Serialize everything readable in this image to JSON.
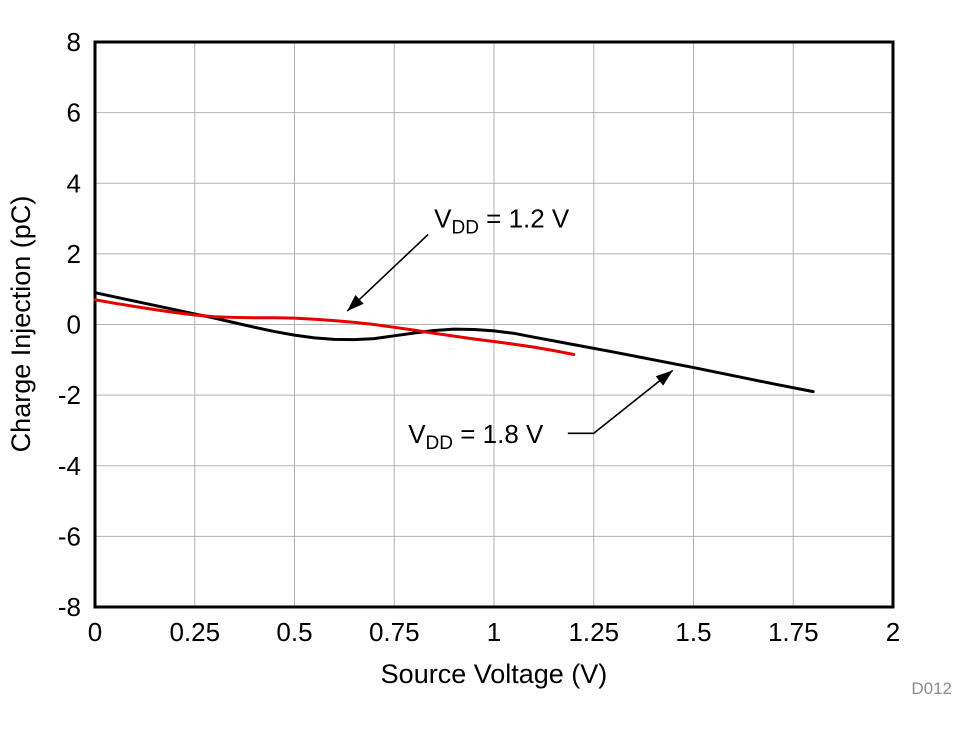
{
  "chart_data": {
    "type": "line",
    "title": "",
    "xlabel": "Source Voltage (V)",
    "ylabel": "Charge Injection (pC)",
    "figure_id": "D012",
    "xlim": [
      0,
      2
    ],
    "ylim": [
      -8,
      8
    ],
    "xticks": [
      0,
      0.25,
      0.5,
      0.75,
      1,
      1.25,
      1.5,
      1.75,
      2
    ],
    "xtick_labels": [
      "0",
      "0.25",
      "0.5",
      "0.75",
      "1",
      "1.25",
      "1.5",
      "1.75",
      "2"
    ],
    "yticks": [
      -8,
      -6,
      -4,
      -2,
      0,
      2,
      4,
      6,
      8
    ],
    "ytick_labels": [
      "-8",
      "-6",
      "-4",
      "-2",
      "0",
      "2",
      "4",
      "6",
      "8"
    ],
    "grid": true,
    "grid_color": "#b2b2b2",
    "axis_color": "#000000",
    "background": "#ffffff",
    "series": [
      {
        "name": "VDD = 1.8 V",
        "color": "#000000",
        "x": [
          0,
          0.05,
          0.1,
          0.15,
          0.2,
          0.25,
          0.3,
          0.35,
          0.4,
          0.45,
          0.5,
          0.55,
          0.6,
          0.65,
          0.7,
          0.75,
          0.8,
          0.85,
          0.9,
          0.95,
          1.0,
          1.05,
          1.1,
          1.2,
          1.3,
          1.4,
          1.5,
          1.6,
          1.7,
          1.8
        ],
        "y": [
          0.9,
          0.78,
          0.66,
          0.54,
          0.42,
          0.3,
          0.18,
          0.05,
          -0.08,
          -0.2,
          -0.3,
          -0.38,
          -0.42,
          -0.43,
          -0.4,
          -0.32,
          -0.24,
          -0.17,
          -0.13,
          -0.14,
          -0.18,
          -0.25,
          -0.36,
          -0.57,
          -0.78,
          -1.0,
          -1.22,
          -1.45,
          -1.68,
          -1.9
        ]
      },
      {
        "name": "VDD = 1.2 V",
        "color": "#e60000",
        "x": [
          0,
          0.05,
          0.1,
          0.15,
          0.2,
          0.25,
          0.3,
          0.35,
          0.4,
          0.45,
          0.5,
          0.55,
          0.6,
          0.65,
          0.7,
          0.75,
          0.8,
          0.85,
          0.9,
          0.95,
          1.0,
          1.05,
          1.1,
          1.15,
          1.2
        ],
        "y": [
          0.7,
          0.6,
          0.51,
          0.42,
          0.34,
          0.27,
          0.22,
          0.2,
          0.19,
          0.19,
          0.18,
          0.15,
          0.11,
          0.06,
          0.0,
          -0.08,
          -0.16,
          -0.25,
          -0.33,
          -0.41,
          -0.48,
          -0.56,
          -0.64,
          -0.74,
          -0.85
        ]
      }
    ],
    "annotations": [
      {
        "name": "annotation-vdd-1p2",
        "label": "VDD = 1.2 V",
        "parts": [
          [
            "V",
            false
          ],
          [
            "DD",
            true
          ],
          [
            " = 1.2 V",
            false
          ]
        ],
        "x": 0.85,
        "y": 3.0,
        "arrow_points": [
          [
            0.835,
            2.55
          ],
          [
            0.632,
            0.38
          ]
        ]
      },
      {
        "name": "annotation-vdd-1p8",
        "label": "VDD = 1.8 V",
        "parts": [
          [
            "V",
            false
          ],
          [
            "DD",
            true
          ],
          [
            " = 1.8 V",
            false
          ]
        ],
        "x": 0.785,
        "y": -3.1,
        "arrow_points": [
          [
            1.185,
            -3.08
          ],
          [
            1.25,
            -3.08
          ],
          [
            1.448,
            -1.3
          ]
        ]
      }
    ],
    "legend_position": "none"
  }
}
